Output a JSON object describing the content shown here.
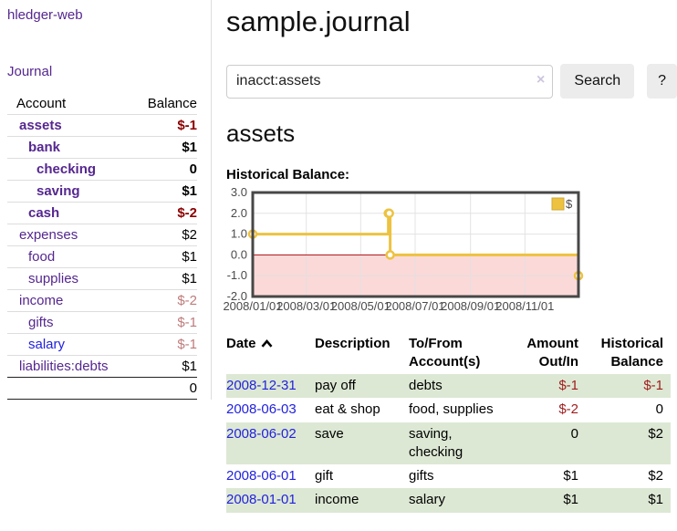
{
  "app": {
    "title": "hledger-web",
    "nav_journal": "Journal"
  },
  "sidebar": {
    "header": {
      "account": "Account",
      "balance": "Balance"
    },
    "accounts": [
      {
        "name": "assets",
        "depth": 1,
        "bold": true,
        "balance": "$-1",
        "balance_style": "neg-strong"
      },
      {
        "name": "bank",
        "depth": 2,
        "bold": true,
        "balance": "$1",
        "balance_style": "pos"
      },
      {
        "name": "checking",
        "depth": 3,
        "bold": true,
        "balance": "0",
        "balance_style": "pos"
      },
      {
        "name": "saving",
        "depth": 3,
        "bold": true,
        "balance": "$1",
        "balance_style": "pos"
      },
      {
        "name": "cash",
        "depth": 2,
        "bold": true,
        "balance": "$-2",
        "balance_style": "neg-strong"
      },
      {
        "name": "expenses",
        "depth": 1,
        "bold": false,
        "balance": "$2",
        "balance_style": "pos"
      },
      {
        "name": "food",
        "depth": 2,
        "bold": false,
        "balance": "$1",
        "balance_style": "pos"
      },
      {
        "name": "supplies",
        "depth": 2,
        "bold": false,
        "balance": "$1",
        "balance_style": "pos"
      },
      {
        "name": "income",
        "depth": 1,
        "bold": false,
        "balance": "$-2",
        "balance_style": "neg-soft"
      },
      {
        "name": "gifts",
        "depth": 2,
        "bold": false,
        "balance": "$-1",
        "balance_style": "neg-soft"
      },
      {
        "name": "salary",
        "depth": 2,
        "bold": false,
        "balance": "$-1",
        "balance_style": "neg-soft",
        "link_style": "blue"
      },
      {
        "name": "liabilities:debts",
        "depth": 1,
        "bold": false,
        "balance": "$1",
        "balance_style": "pos"
      }
    ],
    "total": "0"
  },
  "header": {
    "title": "sample.journal"
  },
  "search": {
    "value": "inacct:assets",
    "clear_icon": "×",
    "button": "Search",
    "help_button": "?"
  },
  "account_page": {
    "title": "assets",
    "chart_label": "Historical Balance:"
  },
  "chart_data": {
    "type": "line",
    "step": true,
    "title": "Historical Balance:",
    "series": [
      {
        "name": "$",
        "color": "#edc240",
        "points": [
          {
            "date": "2008-01-01",
            "day": 0,
            "value": 1
          },
          {
            "date": "2008-06-01",
            "day": 152,
            "value": 2
          },
          {
            "date": "2008-06-02",
            "day": 153,
            "value": 2
          },
          {
            "date": "2008-06-03",
            "day": 154,
            "value": 0
          },
          {
            "date": "2008-12-31",
            "day": 365,
            "value": -1
          }
        ]
      }
    ],
    "x_axis": {
      "range_days": [
        0,
        365
      ],
      "ticks": [
        {
          "label": "2008/01/01",
          "day": 0
        },
        {
          "label": "2008/03/01",
          "day": 60
        },
        {
          "label": "2008/05/01",
          "day": 121
        },
        {
          "label": "2008/07/01",
          "day": 182
        },
        {
          "label": "2008/09/01",
          "day": 244
        },
        {
          "label": "2008/11/01",
          "day": 305
        }
      ]
    },
    "y_axis": {
      "range": [
        -2,
        3
      ],
      "ticks": [
        {
          "label": "3.0",
          "value": 3
        },
        {
          "label": "2.0",
          "value": 2
        },
        {
          "label": "1.0",
          "value": 1
        },
        {
          "label": "0.0",
          "value": 0
        },
        {
          "label": "-1.0",
          "value": -1
        },
        {
          "label": "-2.0",
          "value": -2
        }
      ]
    },
    "legend_position": "top-right",
    "styles": {
      "negative_fill": "#fbd9d9",
      "zero_line": "#aa1111",
      "grid": "#e0e0e0",
      "border": "#474747",
      "tick_text": "#4a4a4a",
      "marker_fill": "#ffffff",
      "legend_border": "#cfa938"
    }
  },
  "register": {
    "columns": [
      "Date",
      "Description",
      "To/From Account(s)",
      "Amount Out/In",
      "Historical Balance"
    ],
    "sort_icon": "chevron-up",
    "rows": [
      {
        "date": "2008-12-31",
        "description": "pay off",
        "accounts": "debts",
        "amount": "$-1",
        "amount_neg": true,
        "balance": "$-1",
        "balance_neg": true,
        "shaded": true
      },
      {
        "date": "2008-06-03",
        "description": "eat & shop",
        "accounts": "food, supplies",
        "amount": "$-2",
        "amount_neg": true,
        "balance": "0",
        "balance_neg": false,
        "shaded": false
      },
      {
        "date": "2008-06-02",
        "description": "save",
        "accounts": "saving, checking",
        "amount": "0",
        "amount_neg": false,
        "balance": "$2",
        "balance_neg": false,
        "shaded": true
      },
      {
        "date": "2008-06-01",
        "description": "gift",
        "accounts": "gifts",
        "amount": "$1",
        "amount_neg": false,
        "balance": "$2",
        "balance_neg": false,
        "shaded": false
      },
      {
        "date": "2008-01-01",
        "description": "income",
        "accounts": "salary",
        "amount": "$1",
        "amount_neg": false,
        "balance": "$1",
        "balance_neg": false,
        "shaded": true
      }
    ]
  }
}
